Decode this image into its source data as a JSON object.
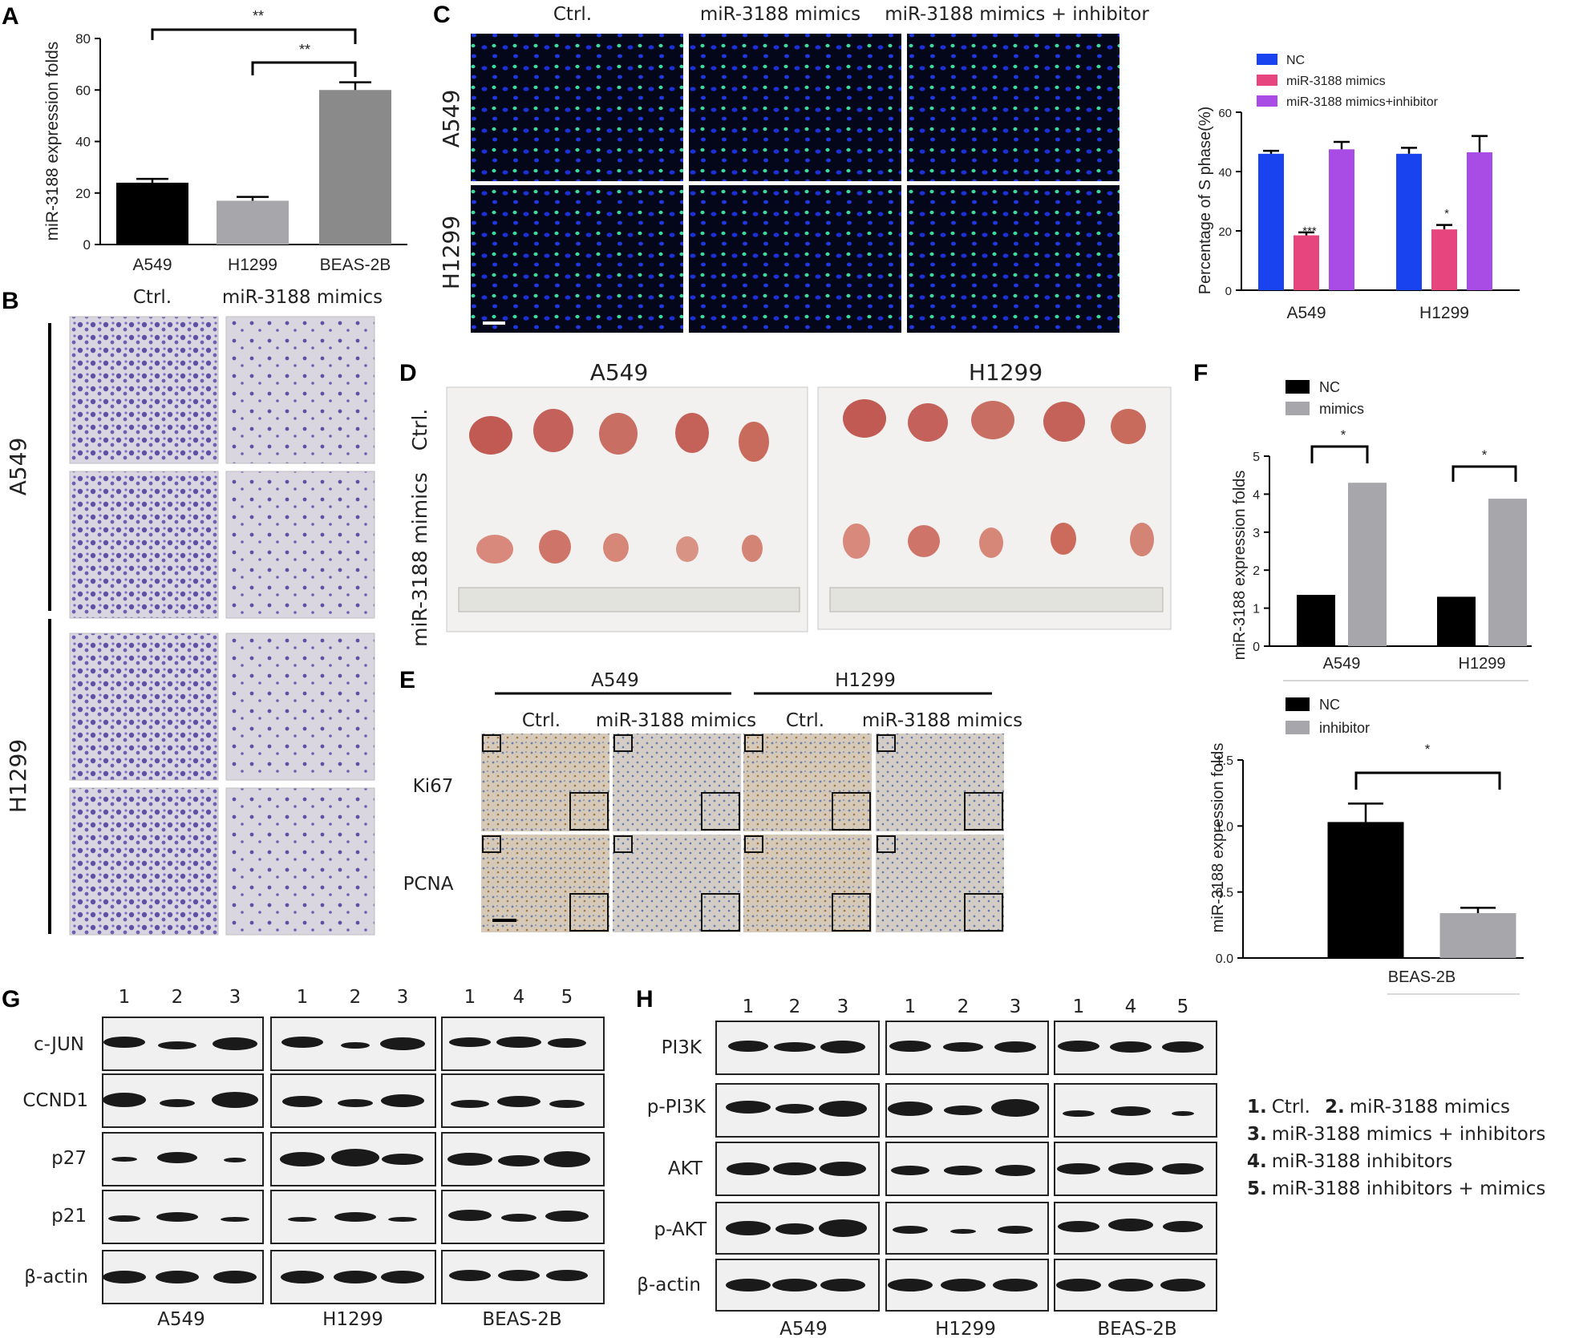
{
  "panels": {
    "A": "A",
    "B": "B",
    "C": "C",
    "D": "D",
    "E": "E",
    "F": "F",
    "G": "G",
    "H": "H"
  },
  "panel_B": {
    "col_labels": [
      "Ctrl.",
      "miR-3188 mimics"
    ],
    "row_labels": [
      "A549",
      "H1299"
    ]
  },
  "panel_C": {
    "col_labels": [
      "Ctrl.",
      "miR-3188 mimics",
      "miR-3188 mimics + inhibitor"
    ],
    "row_labels": [
      "A549",
      "H1299"
    ]
  },
  "panel_D": {
    "titles": [
      "A549",
      "H1299"
    ],
    "row_labels": [
      "Ctrl.",
      "miR-3188 mimics"
    ]
  },
  "panel_E": {
    "groups": [
      "A549",
      "H1299"
    ],
    "col_labels": [
      "Ctrl.",
      "miR-3188 mimics",
      "Ctrl.",
      "miR-3188 mimics"
    ],
    "row_labels": [
      "Ki67",
      "PCNA"
    ]
  },
  "panel_G": {
    "lanes": [
      [
        "1",
        "2",
        "3"
      ],
      [
        "1",
        "2",
        "3"
      ],
      [
        "1",
        "4",
        "5"
      ]
    ],
    "proteins": [
      "c-JUN",
      "CCND1",
      "p27",
      "p21",
      "β-actin"
    ],
    "cell_lines": [
      "A549",
      "H1299",
      "BEAS-2B"
    ]
  },
  "panel_H": {
    "lanes": [
      [
        "1",
        "2",
        "3"
      ],
      [
        "1",
        "2",
        "3"
      ],
      [
        "1",
        "4",
        "5"
      ]
    ],
    "proteins": [
      "PI3K",
      "p-PI3K",
      "AKT",
      "p-AKT",
      "β-actin"
    ],
    "cell_lines": [
      "A549",
      "H1299",
      "BEAS-2B"
    ],
    "legend": [
      {
        "num": "1.",
        "text": "Ctrl."
      },
      {
        "num": "2.",
        "text": "miR-3188 mimics"
      },
      {
        "num": "3.",
        "text": "miR-3188 mimics + inhibitors"
      },
      {
        "num": "4.",
        "text": "miR-3188 inhibitors"
      },
      {
        "num": "5.",
        "text": "miR-3188 inhibitors + mimics"
      }
    ]
  },
  "chart_data": [
    {
      "id": "A",
      "type": "bar",
      "categories": [
        "A549",
        "H1299",
        "BEAS-2B"
      ],
      "values": [
        24,
        17,
        60
      ],
      "errors": [
        1.5,
        1.5,
        3
      ],
      "colors": [
        "#000000",
        "#a7a7ab",
        "#8a8a8a"
      ],
      "ylabel": "miR-3188 expression folds",
      "ylim": [
        0,
        80
      ],
      "yticks": [
        "0",
        "20",
        "40",
        "60",
        "80"
      ],
      "significance": [
        "**",
        "**"
      ]
    },
    {
      "id": "C",
      "type": "bar",
      "categories": [
        "A549",
        "H1299"
      ],
      "series": [
        {
          "name": "NC",
          "values": [
            46,
            46
          ],
          "errors": [
            1,
            2
          ],
          "color": "#1a43f0"
        },
        {
          "name": "miR-3188 mimics",
          "values": [
            18.5,
            20.5
          ],
          "errors": [
            1,
            1.5
          ],
          "color": "#e6457e"
        },
        {
          "name": "miR-3188 mimics+inhibitor",
          "values": [
            47.5,
            46.5
          ],
          "errors": [
            2.5,
            5.5
          ],
          "color": "#a94ce6"
        }
      ],
      "ylabel": "Percentage of S phase(%)",
      "ylim": [
        0,
        60
      ],
      "yticks": [
        "0",
        "20",
        "40",
        "60"
      ],
      "significance": [
        "***",
        "*"
      ]
    },
    {
      "id": "F-top",
      "type": "bar",
      "categories": [
        "A549",
        "H1299"
      ],
      "series": [
        {
          "name": "NC",
          "values": [
            1.35,
            1.3
          ],
          "color": "#000000"
        },
        {
          "name": "mimics",
          "values": [
            4.3,
            3.88
          ],
          "color": "#a7a7ab"
        }
      ],
      "ylabel": "miR-3188 expression folds",
      "ylim": [
        0,
        5
      ],
      "yticks": [
        "0",
        "1",
        "2",
        "3",
        "4",
        "5"
      ],
      "significance": [
        "*",
        "*"
      ]
    },
    {
      "id": "F-bottom",
      "type": "bar",
      "categories": [
        "BEAS-2B"
      ],
      "series": [
        {
          "name": "NC",
          "values": [
            1.03
          ],
          "errors": [
            0.14
          ],
          "color": "#000000"
        },
        {
          "name": "inhibitor",
          "values": [
            0.34
          ],
          "errors": [
            0.04
          ],
          "color": "#a7a7ab"
        }
      ],
      "ylabel": "miR-3188 expression folds",
      "ylim": [
        0,
        1.5
      ],
      "yticks": [
        "0.0",
        "0.5",
        "1.0",
        "1.5"
      ],
      "significance": [
        "*"
      ]
    }
  ]
}
